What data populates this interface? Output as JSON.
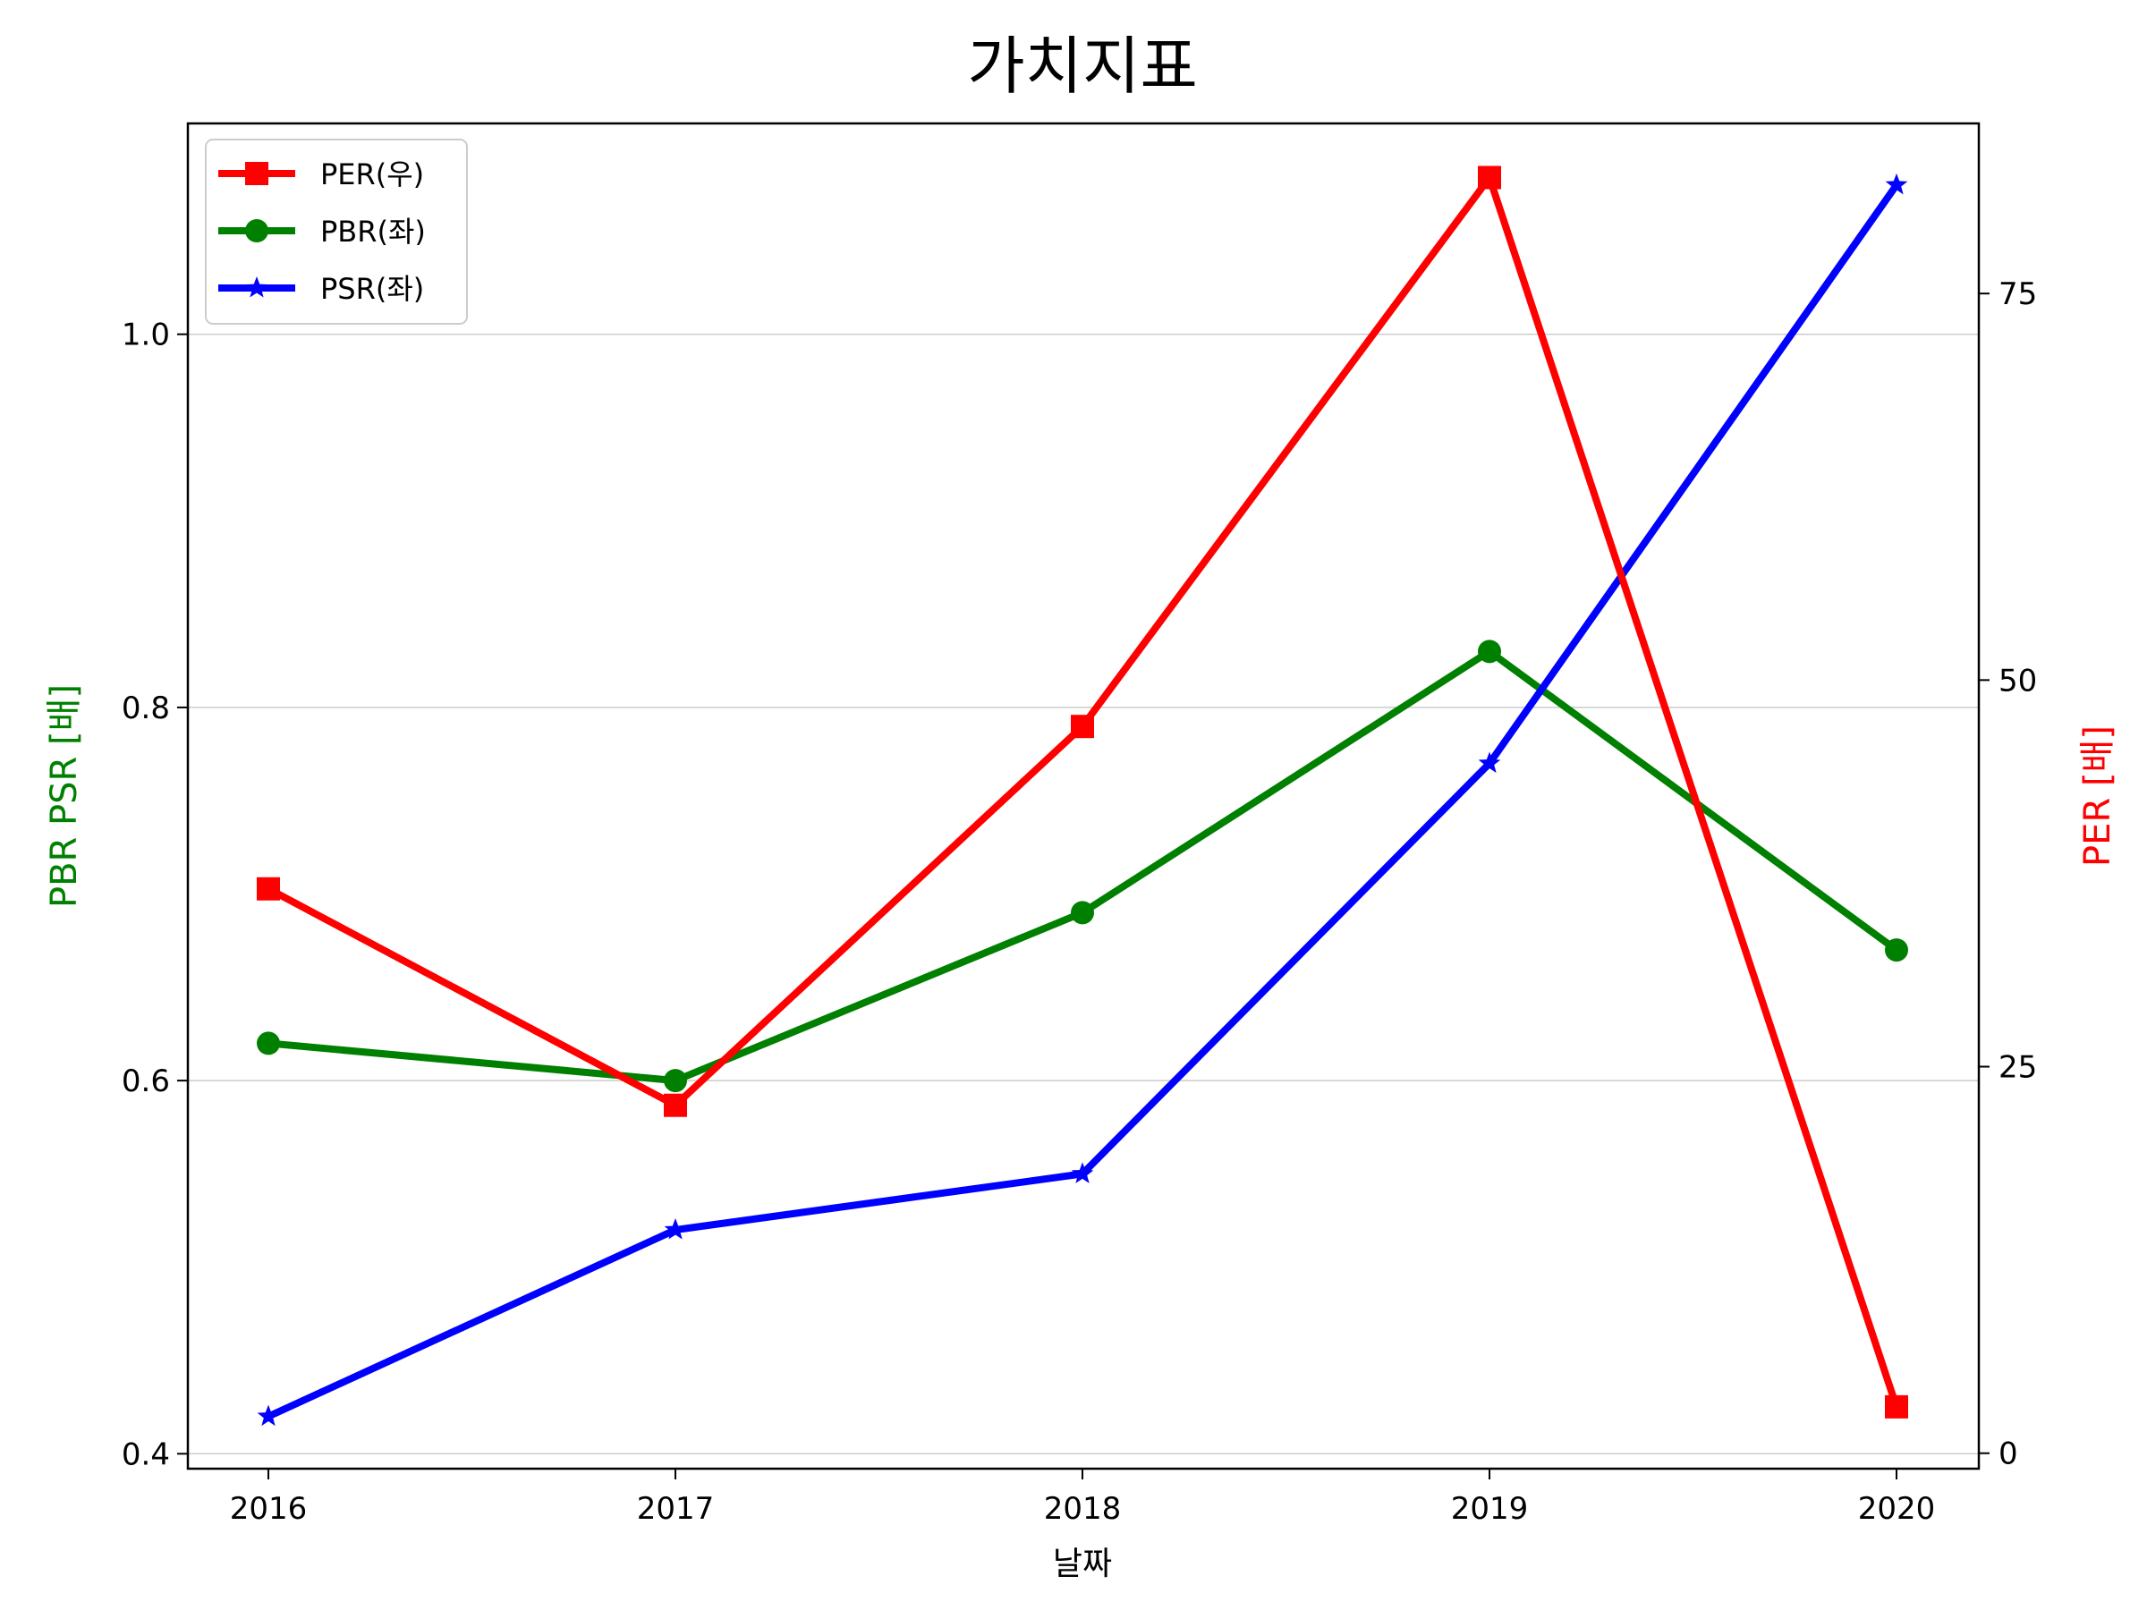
{
  "chart_data": {
    "type": "line",
    "title": "가치지표",
    "xlabel": "날짜",
    "ylabel_left": "PBR PSR [배]",
    "ylabel_right": "PER [배]",
    "categories": [
      "2016",
      "2017",
      "2018",
      "2019",
      "2020"
    ],
    "left_ylim": [
      0.392,
      1.113
    ],
    "left_yticks": [
      0.4,
      0.6,
      0.8,
      1.0
    ],
    "left_ytick_labels": [
      "0.4",
      "0.6",
      "0.8",
      "1.0"
    ],
    "right_ylim": [
      -1,
      86
    ],
    "right_yticks": [
      0,
      25,
      50,
      75
    ],
    "right_ytick_labels": [
      "0",
      "25",
      "50",
      "75"
    ],
    "grid": true,
    "legend_position": "top-left",
    "series": [
      {
        "name": "PER(우)",
        "axis": "right",
        "color": "#ff0000",
        "marker": "square",
        "values": [
          36.5,
          22.5,
          47.0,
          82.5,
          3.0
        ]
      },
      {
        "name": "PBR(좌)",
        "axis": "left",
        "color": "#008000",
        "marker": "circle",
        "values": [
          0.62,
          0.6,
          0.69,
          0.83,
          0.67
        ]
      },
      {
        "name": "PSR(좌)",
        "axis": "left",
        "color": "#0000ff",
        "marker": "star",
        "values": [
          0.42,
          0.52,
          0.55,
          0.77,
          1.08
        ]
      }
    ]
  }
}
